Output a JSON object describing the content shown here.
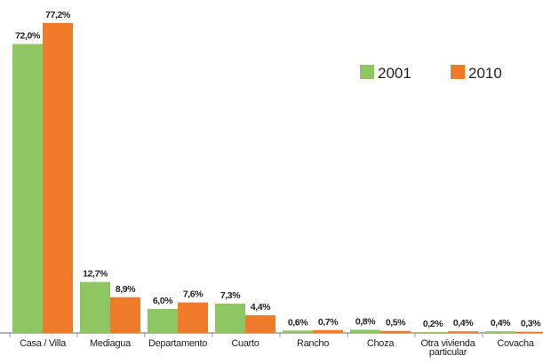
{
  "chart_data": {
    "type": "bar",
    "categories": [
      "Casa / Villa",
      "Mediagua",
      "Departamento",
      "Cuarto",
      "Rancho",
      "Choza",
      "Otra vivienda particular",
      "Covacha"
    ],
    "series": [
      {
        "name": "2001",
        "color": "#8dc663",
        "values": [
          72.0,
          12.7,
          6.0,
          7.3,
          0.6,
          0.8,
          0.2,
          0.4
        ],
        "value_labels": [
          "72,0%",
          "12,7%",
          "6,0%",
          "7,3%",
          "0,6%",
          "0,8%",
          "0,2%",
          "0,4%"
        ]
      },
      {
        "name": "2010",
        "color": "#ef7b2a",
        "values": [
          77.2,
          8.9,
          7.6,
          4.4,
          0.7,
          0.5,
          0.4,
          0.3
        ],
        "value_labels": [
          "77,2%",
          "8,9%",
          "7,6%",
          "4,4%",
          "0,7%",
          "0,5%",
          "0,4%",
          "0,3%"
        ]
      }
    ],
    "ylim": [
      0,
      80
    ],
    "legend": "upper right"
  }
}
